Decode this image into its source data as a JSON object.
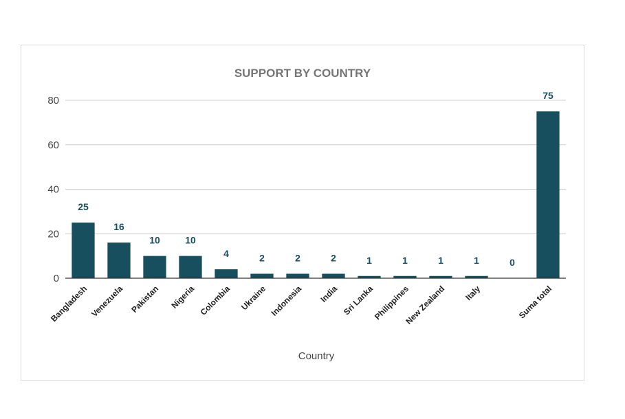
{
  "chart_data": {
    "type": "bar",
    "title": "SUPPORT BY COUNTRY",
    "xlabel": "Country",
    "ylabel": "",
    "categories": [
      "Bangladesh",
      "Venezuela",
      "Pakistan",
      "Nigeria",
      "Colombia",
      "Ukraine",
      "Indonesia",
      "India",
      "Sri Lanka",
      "Philippines",
      "New Zealand",
      "Italy",
      "",
      "Suma total"
    ],
    "values": [
      25,
      16,
      10,
      10,
      4,
      2,
      2,
      2,
      1,
      1,
      1,
      1,
      0,
      75
    ],
    "ylim": [
      0,
      80
    ],
    "yticks": [
      0,
      20,
      40,
      60,
      80
    ],
    "grid": true,
    "legend": "none",
    "bar_color": "#174f5f",
    "label_color": "#174f5f"
  }
}
